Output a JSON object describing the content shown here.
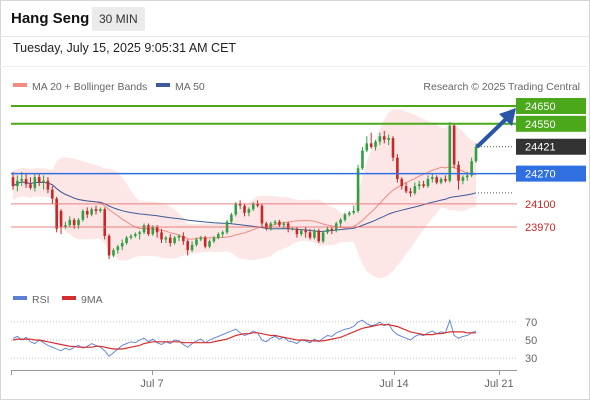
{
  "header": {
    "title": "Hang Seng",
    "interval": "30 MIN",
    "datetime": "Tuesday, July 15, 2025 9:05:31 AM CET"
  },
  "legend": {
    "ma20": "MA 20 + Bollinger Bands",
    "ma50": "MA 50",
    "credit": "Research © 2025 Trading Central",
    "rsi": "RSI",
    "rsi_ma": "9MA"
  },
  "colors": {
    "ma20": "#f28b82",
    "ma50": "#3b5b9a",
    "bollinger_fill": "#fde0e0",
    "up": "#2ea043",
    "down": "#c62828",
    "resistance": "#4aa81a",
    "pivot": "#2f6fe0",
    "support": "#e06666",
    "last": "#333333",
    "arrow": "#2855a5",
    "rsi": "#5b7fd6",
    "rsi_ma": "#d32f2f"
  },
  "chart_data": [
    {
      "type": "candlestick",
      "x_ticks": [
        "Jul 7",
        "Jul 14",
        "Jul 21"
      ],
      "ylim": [
        23780,
        24770
      ],
      "levels": [
        {
          "value": "24650",
          "role": "resistance"
        },
        {
          "value": "24550",
          "role": "resistance"
        },
        {
          "value": "24421",
          "role": "last"
        },
        {
          "value": "24270",
          "role": "pivot"
        },
        {
          "value": "24100",
          "role": "support"
        },
        {
          "value": "23970",
          "role": "support"
        }
      ],
      "ohlc": [
        [
          24250,
          24280,
          24180,
          24200
        ],
        [
          24200,
          24260,
          24170,
          24230
        ],
        [
          24230,
          24280,
          24200,
          24240
        ],
        [
          24240,
          24270,
          24190,
          24210
        ],
        [
          24210,
          24250,
          24180,
          24190
        ],
        [
          24190,
          24270,
          24170,
          24250
        ],
        [
          24250,
          24270,
          24200,
          24220
        ],
        [
          24220,
          24260,
          24180,
          24230
        ],
        [
          24230,
          24250,
          24160,
          24180
        ],
        [
          24180,
          24200,
          24100,
          24130
        ],
        [
          24130,
          24140,
          23940,
          23960
        ],
        [
          24060,
          24070,
          23930,
          23970
        ],
        [
          23970,
          24000,
          23960,
          23980
        ],
        [
          23980,
          24030,
          23970,
          24010
        ],
        [
          24010,
          24020,
          23960,
          23980
        ],
        [
          23980,
          24020,
          23960,
          24010
        ],
        [
          24010,
          24070,
          24000,
          24060
        ],
        [
          24060,
          24080,
          24020,
          24040
        ],
        [
          24040,
          24080,
          24030,
          24070
        ],
        [
          24070,
          24090,
          24040,
          24060
        ],
        [
          24060,
          24080,
          24050,
          24070
        ],
        [
          24070,
          24080,
          23900,
          23920
        ],
        [
          23920,
          23930,
          23790,
          23810
        ],
        [
          23810,
          23850,
          23800,
          23840
        ],
        [
          23840,
          23870,
          23820,
          23860
        ],
        [
          23860,
          23900,
          23840,
          23880
        ],
        [
          23880,
          23920,
          23870,
          23910
        ],
        [
          23910,
          23930,
          23900,
          23920
        ],
        [
          23920,
          23940,
          23910,
          23930
        ],
        [
          23930,
          23950,
          23900,
          23940
        ],
        [
          23940,
          23990,
          23930,
          23980
        ],
        [
          23980,
          23990,
          23920,
          23930
        ],
        [
          23930,
          23980,
          23920,
          23970
        ],
        [
          23970,
          23980,
          23910,
          23940
        ],
        [
          23940,
          23960,
          23880,
          23900
        ],
        [
          23900,
          23920,
          23880,
          23910
        ],
        [
          23910,
          23930,
          23860,
          23880
        ],
        [
          23880,
          23920,
          23870,
          23910
        ],
        [
          23910,
          23930,
          23890,
          23920
        ],
        [
          23920,
          23940,
          23870,
          23890
        ],
        [
          23890,
          23900,
          23810,
          23840
        ],
        [
          23840,
          23890,
          23830,
          23870
        ],
        [
          23870,
          23910,
          23860,
          23900
        ],
        [
          23900,
          23920,
          23890,
          23910
        ],
        [
          23910,
          23920,
          23850,
          23860
        ],
        [
          23860,
          23900,
          23850,
          23890
        ],
        [
          23890,
          23920,
          23880,
          23910
        ],
        [
          23910,
          23940,
          23900,
          23930
        ],
        [
          23930,
          23950,
          23910,
          23940
        ],
        [
          23940,
          24010,
          23930,
          24000
        ],
        [
          24000,
          24050,
          23990,
          24040
        ],
        [
          24040,
          24110,
          24030,
          24100
        ],
        [
          24100,
          24120,
          24070,
          24090
        ],
        [
          24090,
          24100,
          24030,
          24050
        ],
        [
          24050,
          24080,
          24030,
          24070
        ],
        [
          24070,
          24110,
          24060,
          24100
        ],
        [
          24100,
          24120,
          24080,
          24090
        ],
        [
          24090,
          24100,
          23970,
          23990
        ],
        [
          23990,
          24000,
          23950,
          23960
        ],
        [
          23960,
          24000,
          23950,
          23990
        ],
        [
          23990,
          24010,
          23980,
          24000
        ],
        [
          24000,
          24010,
          23970,
          23980
        ],
        [
          23980,
          24000,
          23960,
          23990
        ],
        [
          23990,
          24000,
          23940,
          23960
        ],
        [
          23960,
          23970,
          23950,
          23960
        ],
        [
          23960,
          23970,
          23910,
          23930
        ],
        [
          23930,
          23960,
          23920,
          23950
        ],
        [
          23950,
          23970,
          23910,
          23940
        ],
        [
          23940,
          23960,
          23900,
          23910
        ],
        [
          23910,
          23960,
          23900,
          23950
        ],
        [
          23950,
          23960,
          23880,
          23890
        ],
        [
          23890,
          23950,
          23880,
          23940
        ],
        [
          23940,
          23970,
          23930,
          23960
        ],
        [
          23960,
          23970,
          23930,
          23950
        ],
        [
          23950,
          24000,
          23940,
          23990
        ],
        [
          23990,
          24020,
          23970,
          24010
        ],
        [
          24010,
          24050,
          24000,
          24040
        ],
        [
          24040,
          24060,
          24030,
          24050
        ],
        [
          24050,
          24090,
          24040,
          24060
        ],
        [
          24060,
          24320,
          24050,
          24300
        ],
        [
          24300,
          24420,
          24290,
          24400
        ],
        [
          24400,
          24480,
          24390,
          24440
        ],
        [
          24440,
          24500,
          24410,
          24420
        ],
        [
          24420,
          24460,
          24400,
          24450
        ],
        [
          24450,
          24500,
          24430,
          24480
        ],
        [
          24480,
          24510,
          24440,
          24460
        ],
        [
          24460,
          24490,
          24430,
          24470
        ],
        [
          24470,
          24480,
          24340,
          24360
        ],
        [
          24360,
          24380,
          24220,
          24240
        ],
        [
          24240,
          24250,
          24180,
          24200
        ],
        [
          24200,
          24220,
          24160,
          24170
        ],
        [
          24170,
          24190,
          24140,
          24160
        ],
        [
          24160,
          24220,
          24150,
          24200
        ],
        [
          24200,
          24230,
          24180,
          24210
        ],
        [
          24210,
          24230,
          24190,
          24200
        ],
        [
          24200,
          24260,
          24190,
          24240
        ],
        [
          24240,
          24270,
          24220,
          24250
        ],
        [
          24250,
          24260,
          24210,
          24220
        ],
        [
          24220,
          24250,
          24210,
          24240
        ],
        [
          24240,
          24260,
          24220,
          24230
        ],
        [
          24230,
          24560,
          24220,
          24540
        ],
        [
          24540,
          24550,
          24300,
          24320
        ],
        [
          24320,
          24340,
          24180,
          24230
        ],
        [
          24230,
          24260,
          24210,
          24250
        ],
        [
          24250,
          24280,
          24230,
          24260
        ],
        [
          24260,
          24360,
          24250,
          24340
        ],
        [
          24340,
          24440,
          24330,
          24421
        ]
      ]
    },
    {
      "type": "line",
      "title": "RSI",
      "y_ticks": [
        "70",
        "50",
        "30"
      ],
      "ylim": [
        20,
        82
      ],
      "series": [
        {
          "name": "RSI",
          "values": [
            52,
            54,
            50,
            53,
            48,
            46,
            50,
            47,
            44,
            42,
            40,
            38,
            41,
            39,
            42,
            44,
            41,
            43,
            46,
            44,
            42,
            38,
            32,
            36,
            40,
            44,
            46,
            48,
            47,
            50,
            52,
            48,
            51,
            47,
            45,
            48,
            46,
            50,
            49,
            45,
            42,
            46,
            49,
            51,
            47,
            50,
            52,
            54,
            56,
            58,
            60,
            62,
            58,
            55,
            57,
            60,
            58,
            50,
            48,
            52,
            54,
            51,
            53,
            49,
            48,
            46,
            50,
            49,
            47,
            51,
            48,
            52,
            55,
            54,
            58,
            60,
            62,
            63,
            65,
            70,
            72,
            68,
            66,
            67,
            70,
            66,
            68,
            60,
            56,
            54,
            52,
            50,
            54,
            56,
            55,
            58,
            60,
            57,
            59,
            58,
            72,
            55,
            52,
            54,
            55,
            58,
            60
          ]
        },
        {
          "name": "9MA",
          "values": [
            50,
            51,
            51,
            51,
            51,
            50,
            50,
            49,
            48,
            47,
            46,
            45,
            44,
            43,
            43,
            42,
            42,
            42,
            42,
            43,
            43,
            42,
            41,
            40,
            40,
            40,
            41,
            42,
            43,
            44,
            46,
            47,
            48,
            48,
            48,
            48,
            48,
            48,
            48,
            47,
            47,
            47,
            47,
            47,
            47,
            47,
            48,
            49,
            50,
            51,
            53,
            55,
            56,
            57,
            57,
            58,
            58,
            57,
            56,
            55,
            55,
            54,
            53,
            52,
            51,
            50,
            50,
            50,
            49,
            49,
            49,
            49,
            50,
            51,
            52,
            53,
            55,
            57,
            59,
            61,
            63,
            64,
            65,
            66,
            67,
            67,
            67,
            66,
            65,
            63,
            61,
            59,
            58,
            57,
            56,
            56,
            56,
            57,
            57,
            58,
            59,
            59,
            59,
            59,
            58,
            58,
            58
          ]
        }
      ]
    }
  ]
}
